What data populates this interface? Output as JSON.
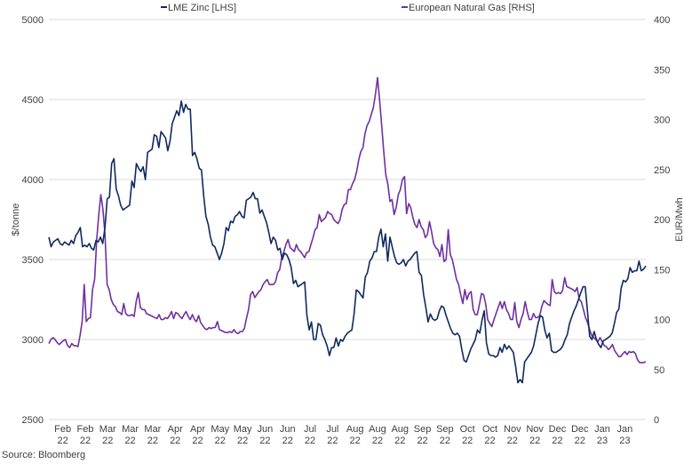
{
  "chart_data": {
    "type": "line",
    "title": "",
    "legend": {
      "placement": "top-center",
      "entries": [
        "LME Zinc [LHS]",
        "European Natural Gas [RHS]"
      ]
    },
    "y_left": {
      "label": "$/tonne",
      "range": [
        2500,
        5000
      ],
      "ticks": [
        "2500",
        "3000",
        "3500",
        "4000",
        "4500",
        "5000"
      ]
    },
    "y_right": {
      "label": "EUR/Mwh",
      "range": [
        0,
        400
      ],
      "ticks": [
        "0",
        "50",
        "100",
        "150",
        "200",
        "250",
        "300",
        "350",
        "400"
      ]
    },
    "grid": true,
    "x_tick_labels": [
      [
        "Feb",
        "22"
      ],
      [
        "Feb",
        "22"
      ],
      [
        "Mar",
        "22"
      ],
      [
        "Mar",
        "22"
      ],
      [
        "Mar",
        "22"
      ],
      [
        "Apr",
        "22"
      ],
      [
        "Apr",
        "22"
      ],
      [
        "May",
        "22"
      ],
      [
        "May",
        "22"
      ],
      [
        "Jun",
        "22"
      ],
      [
        "Jun",
        "22"
      ],
      [
        "Jul",
        "22"
      ],
      [
        "Jul",
        "22"
      ],
      [
        "Aug",
        "22"
      ],
      [
        "Aug",
        "22"
      ],
      [
        "Aug",
        "22"
      ],
      [
        "Sep",
        "22"
      ],
      [
        "Sep",
        "22"
      ],
      [
        "Oct",
        "22"
      ],
      [
        "Oct",
        "22"
      ],
      [
        "Nov",
        "22"
      ],
      [
        "Nov",
        "22"
      ],
      [
        "Dec",
        "22"
      ],
      [
        "Dec",
        "22"
      ],
      [
        "Jan",
        "23"
      ],
      [
        "Jan",
        "23"
      ]
    ],
    "series": [
      {
        "name": "LME Zinc [LHS]",
        "axis": "left",
        "color": "#0f2a5e",
        "values": [
          3640,
          3580,
          3610,
          3620,
          3630,
          3600,
          3590,
          3610,
          3600,
          3590,
          3620,
          3600,
          3650,
          3670,
          3700,
          3580,
          3590,
          3580,
          3600,
          3570,
          3560,
          3620,
          3610,
          3640,
          3600,
          3700,
          3880,
          3890,
          4100,
          4130,
          3940,
          3900,
          3840,
          3810,
          3820,
          3830,
          3840,
          3990,
          3950,
          4100,
          4070,
          4050,
          4080,
          4000,
          4170,
          4180,
          4190,
          4280,
          4270,
          4200,
          4300,
          4280,
          4260,
          4180,
          4240,
          4350,
          4390,
          4430,
          4400,
          4490,
          4420,
          4470,
          4440,
          4440,
          4150,
          4170,
          4130,
          4070,
          4060,
          3900,
          3770,
          3720,
          3640,
          3590,
          3580,
          3540,
          3500,
          3540,
          3600,
          3700,
          3680,
          3740,
          3730,
          3770,
          3780,
          3800,
          3770,
          3760,
          3870,
          3880,
          3890,
          3920,
          3880,
          3880,
          3790,
          3810,
          3770,
          3730,
          3670,
          3600,
          3640,
          3620,
          3560,
          3570,
          3500,
          3540,
          3530,
          3500,
          3450,
          3350,
          3370,
          3330,
          3340,
          3350,
          3360,
          3150,
          3060,
          3110,
          3000,
          3000,
          3100,
          3090,
          3030,
          3000,
          2960,
          2900,
          2950,
          2950,
          3010,
          2960,
          3000,
          2990,
          3020,
          3040,
          3050,
          3060,
          3160,
          3310,
          3300,
          3280,
          3260,
          3390,
          3420,
          3490,
          3510,
          3550,
          3550,
          3640,
          3690,
          3580,
          3660,
          3490,
          3640,
          3580,
          3520,
          3480,
          3470,
          3480,
          3500,
          3460,
          3490,
          3500,
          3520,
          3540,
          3550,
          3420,
          3400,
          3280,
          3200,
          3110,
          3160,
          3130,
          3120,
          3130,
          3180,
          3210,
          3200,
          3150,
          3110,
          3070,
          3040,
          3030,
          3040,
          3020,
          2940,
          2870,
          2860,
          2900,
          2940,
          2970,
          3000,
          3060,
          3040,
          3120,
          3180,
          2980,
          2910,
          2900,
          2900,
          2890,
          2900,
          2950,
          2920,
          2970,
          2940,
          2960,
          2940,
          2920,
          2830,
          2730,
          2750,
          2730,
          2860,
          2880,
          2900,
          2920,
          2960,
          3030,
          3100,
          3150,
          3140,
          3060,
          3010,
          3040,
          2930,
          2920,
          2920,
          2930,
          2940,
          2960,
          3000,
          3030,
          3100,
          3140,
          3180,
          3210,
          3250,
          3290,
          3330,
          3330,
          3180,
          3020,
          3000,
          3050,
          3000,
          2970,
          2950,
          2990,
          3000,
          3010,
          3020,
          3040,
          3100,
          3170,
          3190,
          3320,
          3370,
          3360,
          3380,
          3450,
          3420,
          3430,
          3430,
          3490,
          3430,
          3440,
          3460
        ]
      },
      {
        "name": "European Natural Gas [RHS]",
        "axis": "right",
        "color": "#7030a0",
        "values": [
          76,
          80,
          82,
          80,
          77,
          75,
          77,
          79,
          80,
          74,
          72,
          76,
          74,
          74,
          73,
          84,
          98,
          135,
          98,
          101,
          102,
          130,
          140,
          180,
          205,
          225,
          210,
          185,
          135,
          130,
          120,
          115,
          113,
          108,
          107,
          105,
          116,
          106,
          104,
          104,
          105,
          103,
          118,
          127,
          112,
          110,
          110,
          106,
          105,
          104,
          103,
          102,
          101,
          105,
          100,
          100,
          102,
          101,
          104,
          108,
          101,
          107,
          106,
          103,
          101,
          105,
          108,
          103,
          100,
          105,
          100,
          98,
          104,
          97,
          94,
          91,
          90,
          92,
          91,
          92,
          92,
          98,
          90,
          89,
          88,
          87,
          87,
          88,
          87,
          90,
          87,
          86,
          88,
          88,
          91,
          101,
          110,
          125,
          128,
          122,
          125,
          128,
          130,
          135,
          138,
          140,
          135,
          135,
          135,
          138,
          147,
          150,
          162,
          168,
          175,
          180,
          172,
          170,
          168,
          175,
          170,
          168,
          165,
          162,
          167,
          168,
          175,
          182,
          190,
          192,
          205,
          198,
          200,
          202,
          208,
          206,
          205,
          200,
          198,
          196,
          200,
          210,
          215,
          216,
          230,
          230,
          236,
          240,
          248,
          260,
          268,
          272,
          286,
          294,
          298,
          305,
          312,
          325,
          342,
          320,
          295,
          268,
          245,
          235,
          218,
          220,
          205,
          212,
          225,
          230,
          240,
          243,
          206,
          216,
          212,
          202,
          195,
          192,
          200,
          193,
          190,
          182,
          185,
          198,
          188,
          176,
          172,
          170,
          163,
          175,
          158,
          160,
          190,
          165,
          160,
          150,
          140,
          135,
          125,
          116,
          130,
          120,
          126,
          128,
          110,
          105,
          105,
          115,
          126,
          125,
          116,
          100,
          96,
          93,
          100,
          106,
          112,
          118,
          111,
          118,
          110,
          106,
          100,
          100,
          117,
          98,
          92,
          100,
          106,
          118,
          108,
          100,
          100,
          106,
          102,
          102,
          104,
          113,
          119,
          117,
          115,
          114,
          140,
          128,
          126,
          127,
          126,
          129,
          142,
          133,
          132,
          131,
          130,
          128,
          132,
          120,
          118,
          110,
          102,
          97,
          90,
          84,
          82,
          80,
          78,
          82,
          78,
          74,
          73,
          70,
          72,
          75,
          69,
          66,
          63,
          63,
          66,
          68,
          65,
          68,
          67,
          68,
          66,
          60,
          57,
          57,
          57,
          58
        ]
      }
    ]
  },
  "footer": {
    "source": "Source: Bloomberg"
  }
}
